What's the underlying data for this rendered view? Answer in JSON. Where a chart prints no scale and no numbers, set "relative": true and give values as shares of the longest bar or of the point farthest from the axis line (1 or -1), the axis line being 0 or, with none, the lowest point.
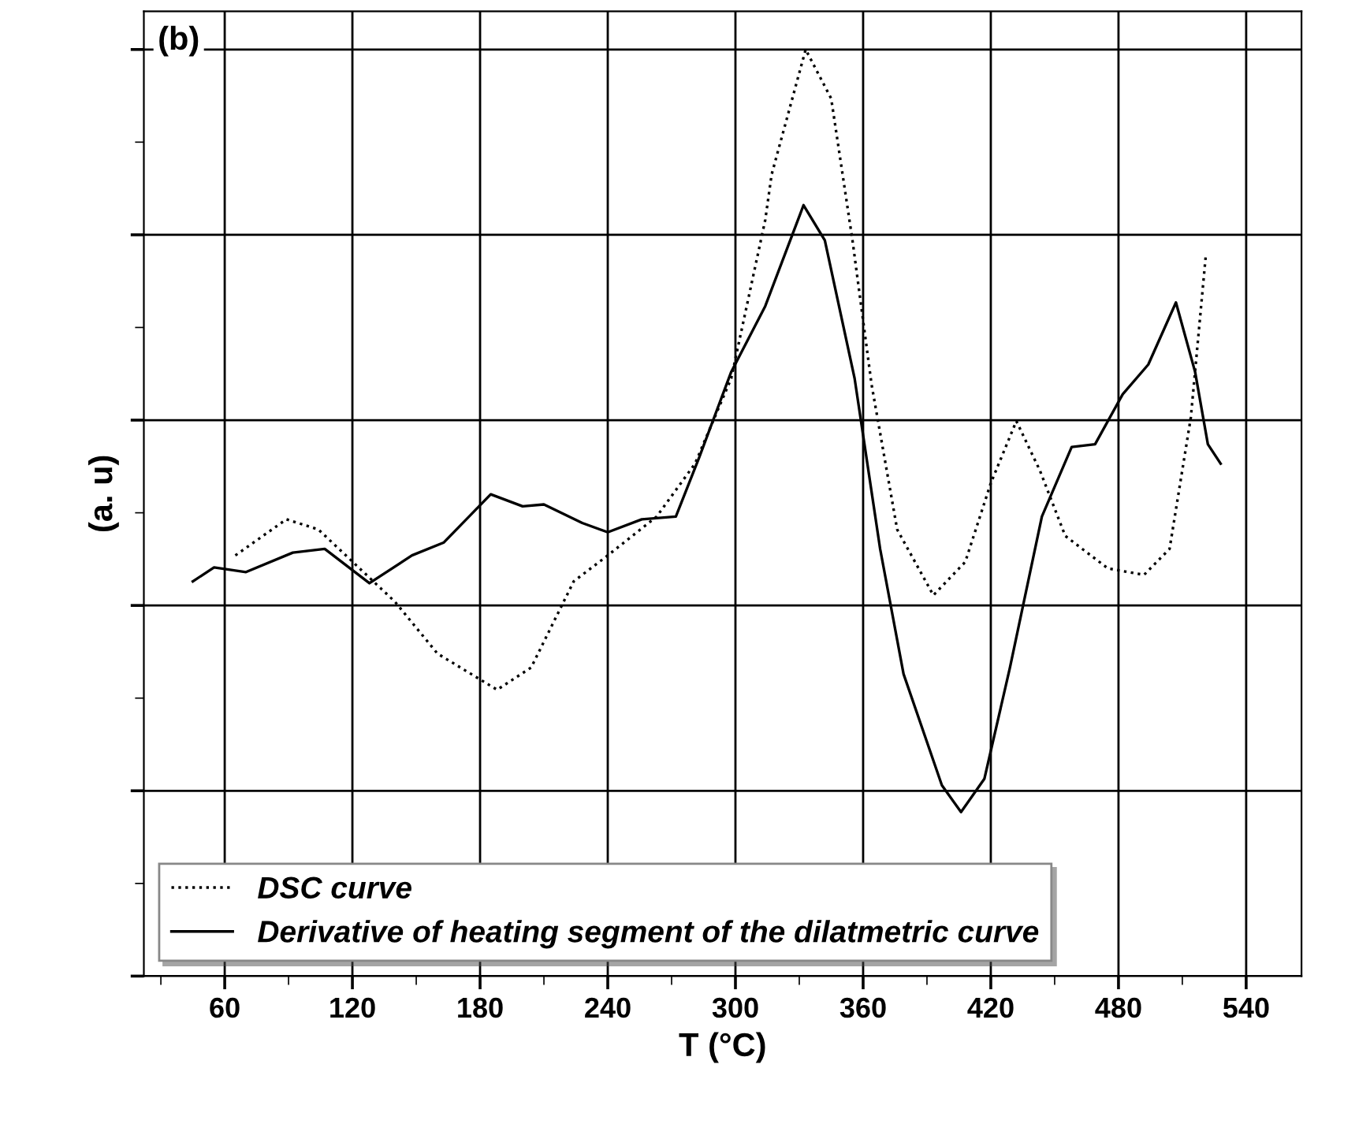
{
  "chart_data": {
    "type": "line",
    "relative": true,
    "xlabel": "T (°C)",
    "ylabel": "(a. u)",
    "annotations": [
      "(b)"
    ],
    "xlim": [
      22,
      566
    ],
    "xticks": [
      60,
      120,
      180,
      240,
      300,
      360,
      420,
      480,
      540
    ],
    "grid": true,
    "legend": "bottom left",
    "tick_labels": "x",
    "series": [
      {
        "name": "DSC curve",
        "color": "#000000",
        "line_style": "dotted",
        "x": [
          65,
          89,
          104,
          122,
          140,
          160,
          188,
          204,
          224,
          240,
          263,
          281,
          298,
          314,
          317,
          333,
          345,
          355,
          364,
          376,
          393,
          408,
          420,
          432,
          443,
          455,
          475,
          492,
          504,
          514,
          521
        ],
        "values": [
          0.454,
          0.493,
          0.482,
          0.443,
          0.404,
          0.348,
          0.309,
          0.333,
          0.426,
          0.454,
          0.496,
          0.553,
          0.645,
          0.816,
          0.865,
          1.0,
          0.947,
          0.794,
          0.638,
          0.482,
          0.411,
          0.447,
          0.532,
          0.599,
          0.546,
          0.475,
          0.44,
          0.433,
          0.461,
          0.603,
          0.777
        ]
      },
      {
        "name": "Derivative of heating segment of the dilatmetric curve",
        "color": "#000000",
        "line_style": "solid",
        "x": [
          45,
          55,
          70,
          92,
          107,
          128,
          148,
          163,
          185,
          200,
          210,
          228,
          240,
          256,
          272,
          283,
          298,
          314,
          332,
          342,
          356,
          368,
          379,
          397,
          406,
          417,
          429,
          444,
          458,
          469,
          482,
          494,
          507,
          516,
          522,
          528
        ],
        "values": [
          0.426,
          0.441,
          0.436,
          0.457,
          0.461,
          0.424,
          0.454,
          0.468,
          0.52,
          0.507,
          0.509,
          0.489,
          0.479,
          0.493,
          0.496,
          0.56,
          0.652,
          0.723,
          0.832,
          0.794,
          0.645,
          0.461,
          0.326,
          0.206,
          0.177,
          0.213,
          0.333,
          0.496,
          0.571,
          0.574,
          0.628,
          0.66,
          0.727,
          0.652,
          0.574,
          0.553
        ]
      }
    ]
  }
}
